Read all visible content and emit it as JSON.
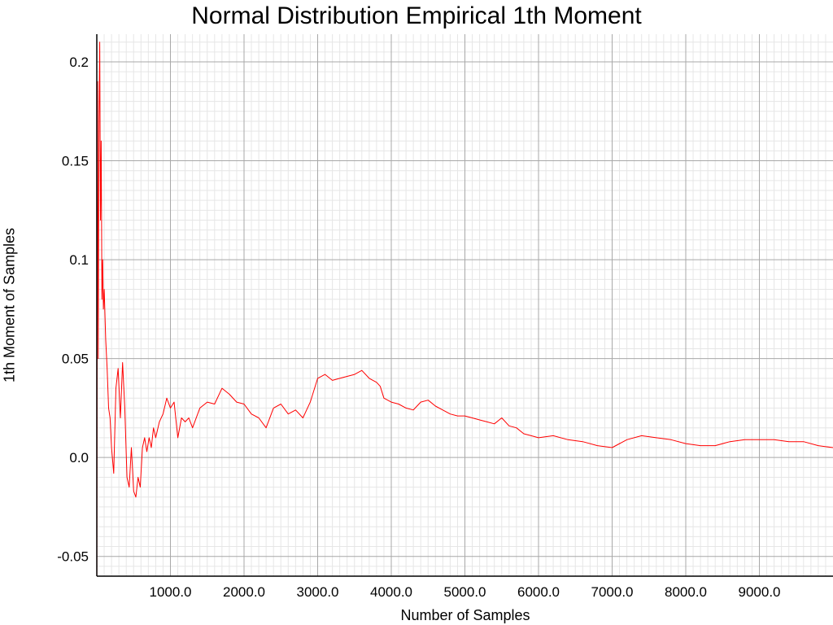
{
  "chart_data": {
    "type": "line",
    "title": "Normal Distribution Empirical 1th Moment",
    "xlabel": "Number of Samples",
    "ylabel": "1th Moment of Samples",
    "xlim": [
      0,
      10000
    ],
    "ylim": [
      -0.06,
      0.214
    ],
    "grid": true,
    "x_ticks": [
      1000,
      2000,
      3000,
      4000,
      5000,
      6000,
      7000,
      8000,
      9000
    ],
    "x_tick_labels": [
      "1000.0",
      "2000.0",
      "3000.0",
      "4000.0",
      "5000.0",
      "6000.0",
      "7000.0",
      "8000.0",
      "9000.0"
    ],
    "y_ticks": [
      -0.05,
      0.0,
      0.05,
      0.1,
      0.15,
      0.2
    ],
    "y_tick_labels": [
      "-0.05",
      "0.0",
      "0.05",
      "0.1",
      "0.15",
      "0.2"
    ],
    "series_color": "#ff0000",
    "series": [
      {
        "x": [
          1,
          10,
          20,
          30,
          40,
          50,
          60,
          70,
          80,
          90,
          100,
          120,
          140,
          160,
          180,
          200,
          230,
          260,
          290,
          320,
          350,
          380,
          410,
          440,
          470,
          500,
          530,
          560,
          590,
          620,
          650,
          680,
          710,
          740,
          770,
          800,
          850,
          900,
          950,
          1000,
          1050,
          1100,
          1150,
          1200,
          1250,
          1300,
          1400,
          1500,
          1600,
          1700,
          1800,
          1900,
          2000,
          2100,
          2200,
          2300,
          2400,
          2500,
          2600,
          2700,
          2800,
          2900,
          3000,
          3100,
          3200,
          3300,
          3400,
          3500,
          3600,
          3700,
          3800,
          3850,
          3900,
          4000,
          4100,
          4200,
          4300,
          4400,
          4500,
          4600,
          4700,
          4800,
          4900,
          5000,
          5100,
          5200,
          5300,
          5400,
          5500,
          5600,
          5700,
          5800,
          5900,
          6000,
          6200,
          6400,
          6600,
          6800,
          7000,
          7200,
          7400,
          7600,
          7800,
          8000,
          8200,
          8400,
          8600,
          8800,
          9000,
          9200,
          9400,
          9600,
          9800,
          10000
        ],
        "y": [
          -0.06,
          0.19,
          0.05,
          0.17,
          0.21,
          0.12,
          0.16,
          0.08,
          0.1,
          0.075,
          0.085,
          0.06,
          0.045,
          0.025,
          0.02,
          0.005,
          -0.008,
          0.035,
          0.045,
          0.02,
          0.048,
          0.025,
          -0.01,
          -0.015,
          0.005,
          -0.017,
          -0.02,
          -0.01,
          -0.015,
          0.005,
          0.01,
          0.003,
          0.01,
          0.005,
          0.015,
          0.01,
          0.018,
          0.022,
          0.03,
          0.025,
          0.028,
          0.01,
          0.02,
          0.018,
          0.02,
          0.015,
          0.025,
          0.028,
          0.027,
          0.035,
          0.032,
          0.028,
          0.027,
          0.022,
          0.02,
          0.015,
          0.025,
          0.027,
          0.022,
          0.024,
          0.02,
          0.028,
          0.04,
          0.042,
          0.039,
          0.04,
          0.041,
          0.042,
          0.044,
          0.04,
          0.038,
          0.036,
          0.03,
          0.028,
          0.027,
          0.025,
          0.024,
          0.028,
          0.029,
          0.026,
          0.024,
          0.022,
          0.021,
          0.021,
          0.02,
          0.019,
          0.018,
          0.017,
          0.02,
          0.016,
          0.015,
          0.012,
          0.011,
          0.01,
          0.011,
          0.009,
          0.008,
          0.006,
          0.005,
          0.009,
          0.011,
          0.01,
          0.009,
          0.007,
          0.006,
          0.006,
          0.008,
          0.009,
          0.009,
          0.009,
          0.008,
          0.008,
          0.006,
          0.005
        ]
      }
    ]
  }
}
